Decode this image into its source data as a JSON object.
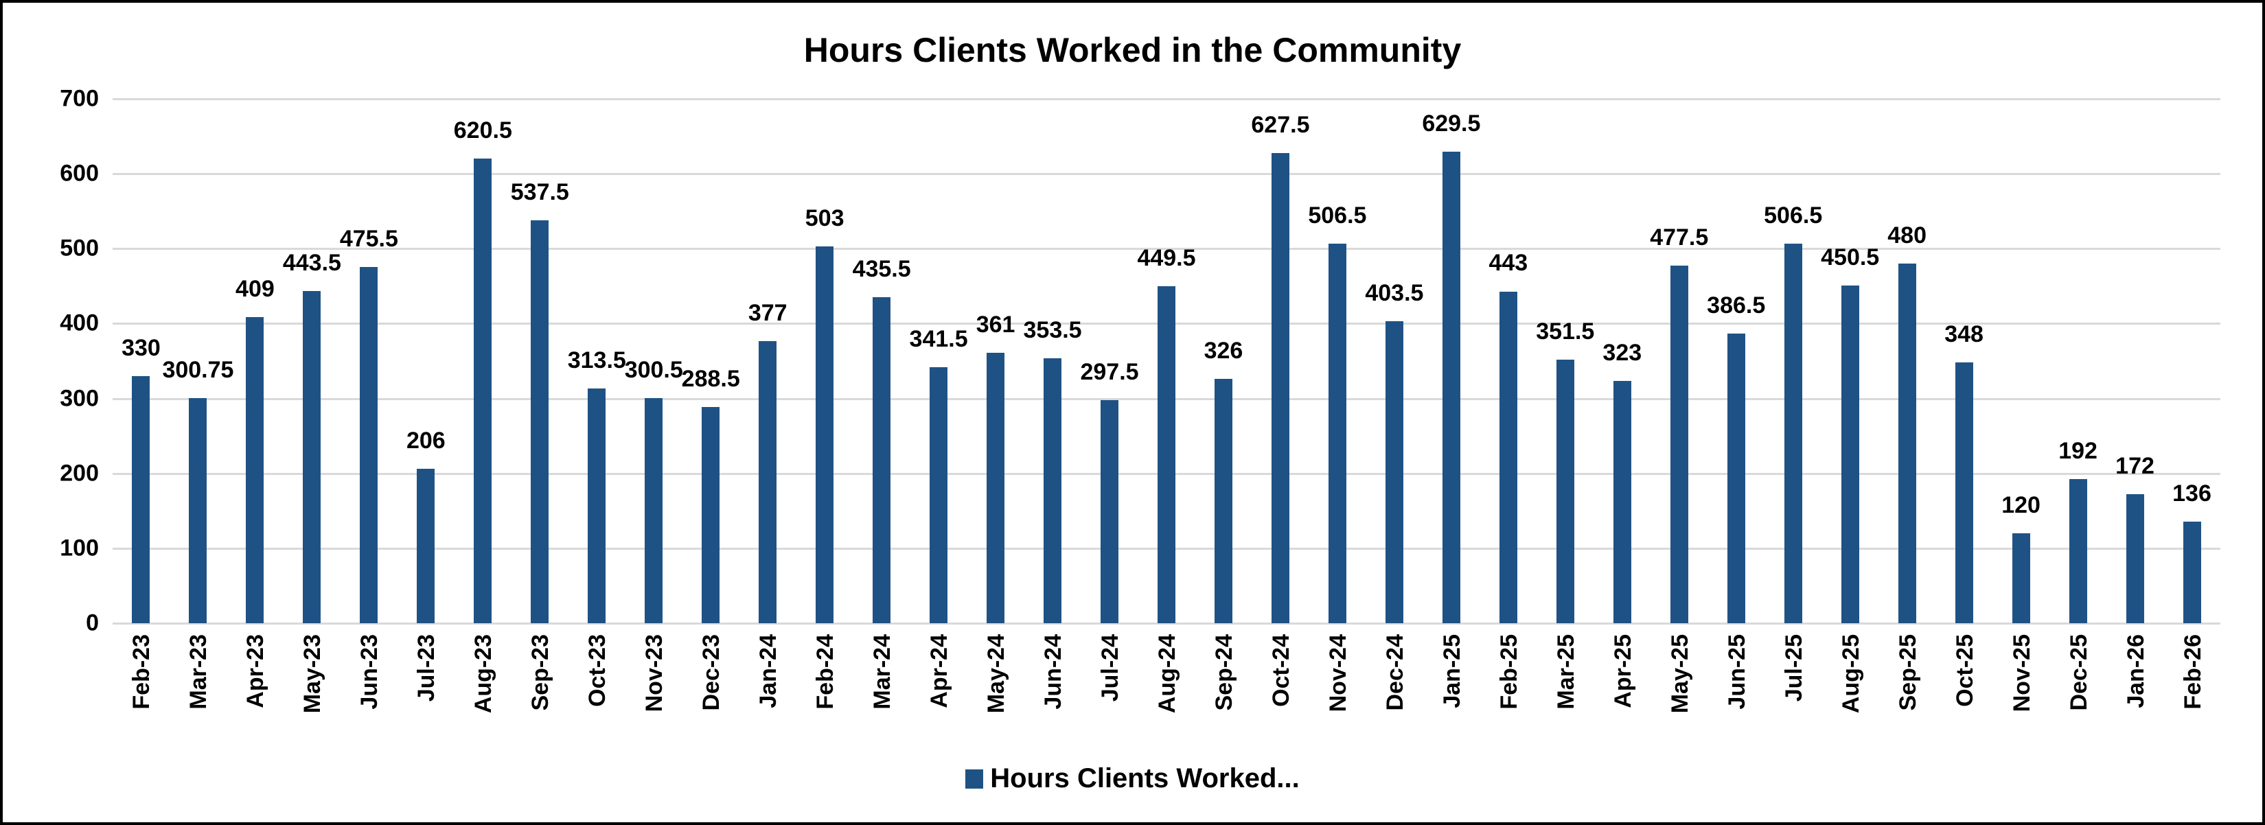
{
  "chart_data": {
    "type": "bar",
    "title": "Hours Clients Worked in the Community",
    "xlabel": "",
    "ylabel": "",
    "ylim": [
      0,
      700
    ],
    "yticks": [
      0,
      100,
      200,
      300,
      400,
      500,
      600,
      700
    ],
    "grid": true,
    "legend_position": "bottom",
    "bar_color": "#1f5284",
    "categories": [
      "Feb-23",
      "Mar-23",
      "Apr-23",
      "May-23",
      "Jun-23",
      "Jul-23",
      "Aug-23",
      "Sep-23",
      "Oct-23",
      "Nov-23",
      "Dec-23",
      "Jan-24",
      "Feb-24",
      "Mar-24",
      "Apr-24",
      "May-24",
      "Jun-24",
      "Jul-24",
      "Aug-24",
      "Sep-24",
      "Oct-24",
      "Nov-24",
      "Dec-24",
      "Jan-25",
      "Feb-25",
      "Mar-25",
      "Apr-25",
      "May-25",
      "Jun-25",
      "Jul-25",
      "Aug-25",
      "Sep-25",
      "Oct-25",
      "Nov-25",
      "Dec-25",
      "Jan-26",
      "Feb-26"
    ],
    "series": [
      {
        "name": "Hours Clients Worked...",
        "values": [
          330,
          300.75,
          409,
          443.5,
          475.5,
          206,
          620.5,
          537.5,
          313.5,
          300.5,
          288.5,
          377,
          503,
          435.5,
          341.5,
          361,
          353.5,
          297.5,
          449.5,
          326,
          627.5,
          506.5,
          403.5,
          629.5,
          443,
          351.5,
          323,
          477.5,
          386.5,
          506.5,
          450.5,
          480,
          348,
          120,
          192,
          172,
          136
        ]
      }
    ],
    "legend": [
      "Hours Clients Worked..."
    ]
  }
}
